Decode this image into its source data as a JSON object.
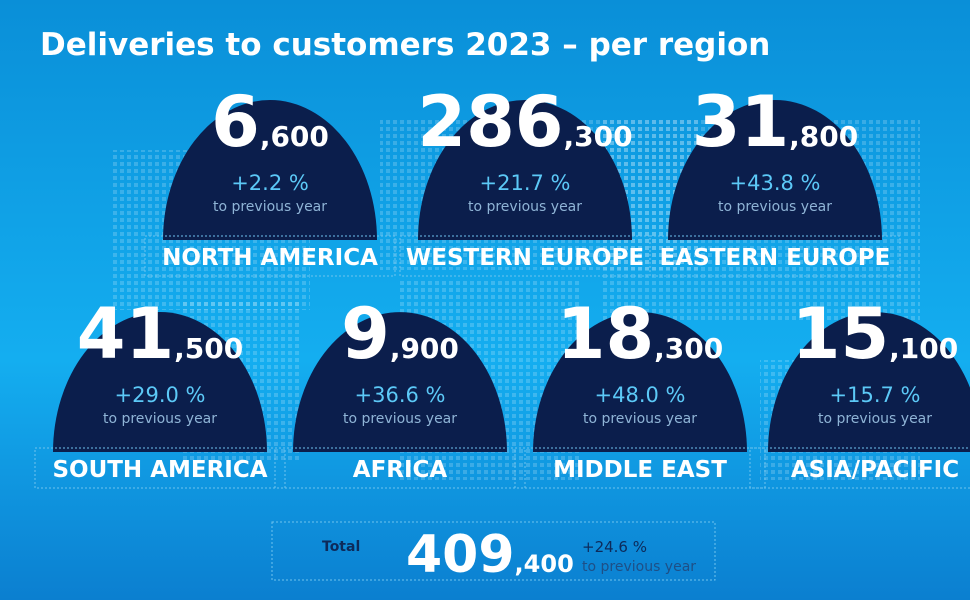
{
  "title": "Deliveries to customers 2023 – per region",
  "regions": [
    {
      "name": "NORTH AMERICA",
      "big": "6",
      "small": ",600",
      "change": "+2.2 %",
      "note": "to previous year"
    },
    {
      "name": "WESTERN EUROPE",
      "big": "286",
      "small": ",300",
      "change": "+21.7 %",
      "note": "to previous year"
    },
    {
      "name": "EASTERN EUROPE",
      "big": "31",
      "small": ",800",
      "change": "+43.8 %",
      "note": "to previous year"
    },
    {
      "name": "SOUTH AMERICA",
      "big": "41",
      "small": ",500",
      "change": "+29.0 %",
      "note": "to previous year"
    },
    {
      "name": "AFRICA",
      "big": "9",
      "small": ",900",
      "change": "+36.6 %",
      "note": "to previous year"
    },
    {
      "name": "MIDDLE EAST",
      "big": "18",
      "small": ",300",
      "change": "+48.0 %",
      "note": "to previous year"
    },
    {
      "name": "ASIA/PACIFIC",
      "big": "15",
      "small": ",100",
      "change": "+15.7 %",
      "note": "to previous year"
    }
  ],
  "total": {
    "label": "Total",
    "big": "409",
    "small": ",400",
    "change": "+24.6 %",
    "note": "to previous year"
  }
}
